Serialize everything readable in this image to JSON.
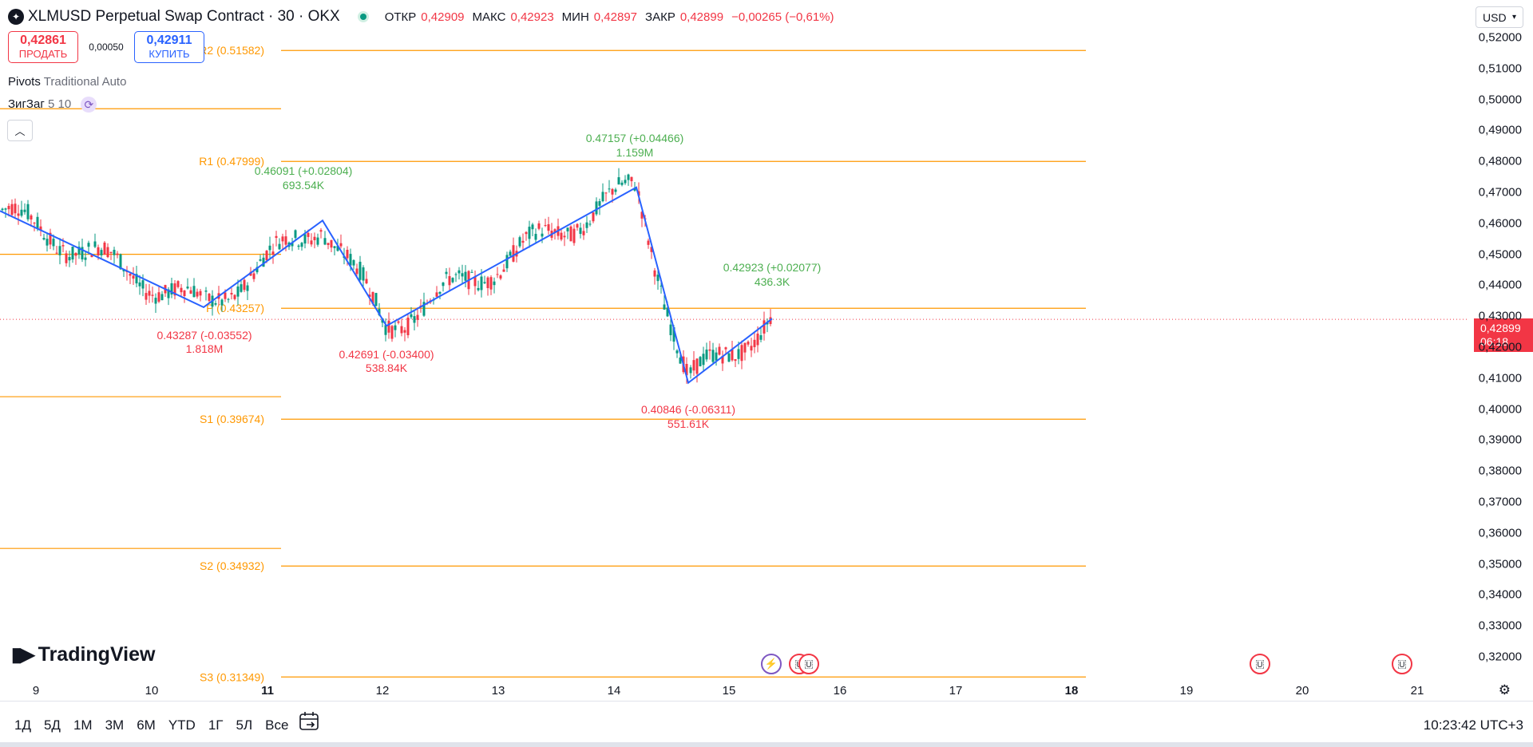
{
  "header": {
    "symbol_icon": "stellar-logo-icon",
    "title": "XLMUSD Perpetual Swap Contract · 30 · OKX",
    "status": "market-open",
    "ohlc": [
      {
        "key": "ОТКР",
        "value": "0,42909"
      },
      {
        "key": "МАКС",
        "value": "0,42923"
      },
      {
        "key": "МИН",
        "value": "0,42897"
      },
      {
        "key": "ЗАКР",
        "value": "0,42899"
      }
    ],
    "change": "−0,00265 (−0,61%)"
  },
  "trade": {
    "sell_price": "0,42861",
    "sell_label": "ПРОДАТЬ",
    "spread": "0,00050",
    "buy_price": "0,42911",
    "buy_label": "КУПИТЬ"
  },
  "indicators": {
    "pivots_name": "Pivots",
    "pivots_params": "Traditional Auto",
    "zigzag_name": "ЗигЗаг",
    "zigzag_params": "5 10"
  },
  "currency": "USD",
  "price_axis": {
    "labels": [
      "0,52000",
      "0,51000",
      "0,50000",
      "0,49000",
      "0,48000",
      "0,47000",
      "0,46000",
      "0,45000",
      "0,44000",
      "0,43000",
      "0,42000",
      "0,41000",
      "0,40000",
      "0,39000",
      "0,38000",
      "0,37000",
      "0,36000",
      "0,35000",
      "0,34000",
      "0,33000",
      "0,32000"
    ],
    "last_price": "0,42899",
    "countdown": "06:18"
  },
  "time_axis": {
    "labels": [
      "9",
      "10",
      "11",
      "12",
      "13",
      "14",
      "15",
      "16",
      "17",
      "18",
      "19",
      "20",
      "21"
    ],
    "bold": [
      "11",
      "18"
    ]
  },
  "pivots": [
    {
      "label": "R2 (0.51582)",
      "value": 0.51582
    },
    {
      "label": "R1 (0.47999)",
      "value": 0.47999
    },
    {
      "label": "P (0.43257)",
      "value": 0.43257
    },
    {
      "label": "S1 (0.39674)",
      "value": 0.39674
    },
    {
      "label": "S2 (0.34932)",
      "value": 0.34932
    },
    {
      "label": "S3 (0.31349)",
      "value": 0.31349
    }
  ],
  "zigzag_labels": [
    {
      "price": "0.46091 (+0.02804)",
      "volume": "693.54K",
      "type": "high"
    },
    {
      "price": "0.43287 (-0.03552)",
      "volume": "1.818M",
      "type": "low"
    },
    {
      "price": "0.42691 (-0.03400)",
      "volume": "538.84K",
      "type": "low"
    },
    {
      "price": "0.47157 (+0.04466)",
      "volume": "1.159M",
      "type": "high"
    },
    {
      "price": "0.40846 (-0.06311)",
      "volume": "551.61K",
      "type": "low"
    },
    {
      "price": "0.42923 (+0.02077)",
      "volume": "436.3K",
      "type": "high"
    }
  ],
  "bottom_toolbar": {
    "ranges": [
      "1Д",
      "5Д",
      "1М",
      "3М",
      "6М",
      "YTD",
      "1Г",
      "5Л",
      "Все"
    ],
    "clock": "10:23:42 UTC+3"
  },
  "logo_text": "TradingView",
  "colors": {
    "up": "#089981",
    "down": "#f23645",
    "pivot": "#ff9800",
    "zigzag": "#2962ff",
    "high_label": "#4caf50",
    "low_label": "#f23645"
  }
}
